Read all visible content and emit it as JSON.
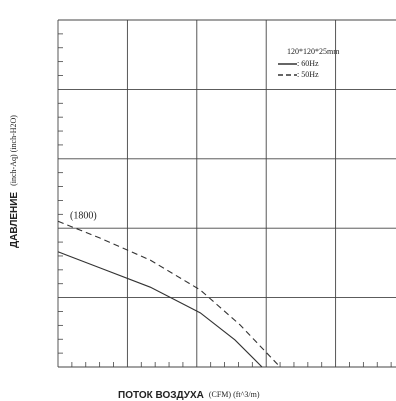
{
  "chart_data": {
    "type": "line",
    "legend_title": "120*120*25mm",
    "annotation": "(1800)",
    "y_label_main": "ДАВЛЕНИЕ",
    "y_label_units": "(inch-Aq) (inch-H2O)",
    "x_label_main": "ПОТОК ВОЗДУХА",
    "x_label_units": "(CFM) (ft^3/m)",
    "xlim": [
      0,
      5
    ],
    "ylim": [
      0,
      5
    ],
    "xticks": [
      0,
      1,
      2,
      3,
      4,
      5
    ],
    "yticks": [
      0,
      1,
      2,
      3,
      4,
      5
    ],
    "grid": true,
    "legend": "upper right",
    "series": [
      {
        "name": ": 60Hz",
        "color": "#333333",
        "dash": "solid",
        "x": [
          0,
          0.6,
          1.33,
          2.05,
          2.55,
          2.94
        ],
        "values": [
          1.66,
          1.43,
          1.15,
          0.78,
          0.39,
          0
        ]
      },
      {
        "name": ": 50Hz",
        "color": "#333333",
        "dash": "dashed",
        "x": [
          0,
          0.6,
          1.33,
          2.05,
          2.62,
          3.2
        ],
        "values": [
          2.1,
          1.86,
          1.54,
          1.11,
          0.61,
          0
        ]
      }
    ]
  }
}
